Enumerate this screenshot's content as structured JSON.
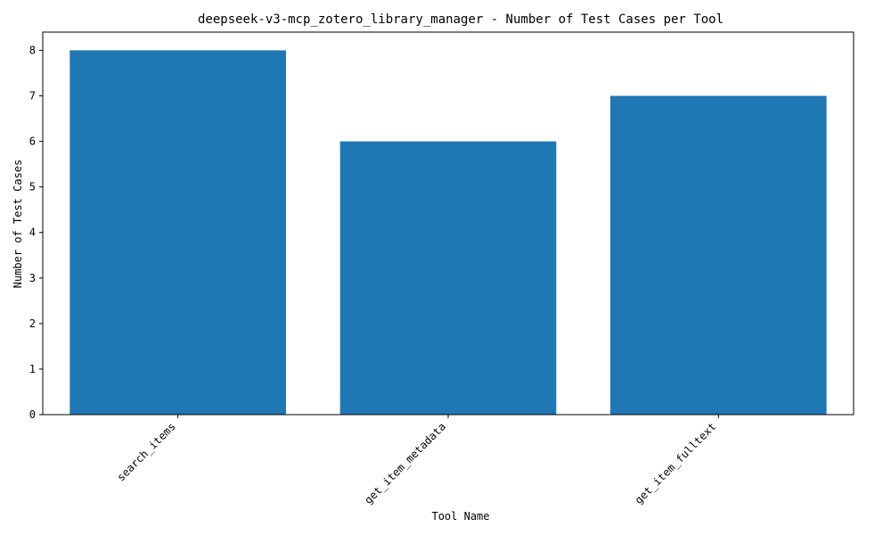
{
  "chart_data": {
    "type": "bar",
    "title": "deepseek-v3-mcp_zotero_library_manager - Number of Test Cases per Tool",
    "xlabel": "Tool Name",
    "ylabel": "Number of Test Cases",
    "categories": [
      "search_items",
      "get_item_metadata",
      "get_item_fulltext"
    ],
    "values": [
      8,
      6,
      7
    ],
    "ylim": [
      0,
      8.4
    ],
    "yticks": [
      0,
      1,
      2,
      3,
      4,
      5,
      6,
      7,
      8
    ],
    "bar_color": "#1f77b4",
    "grid": false,
    "legend": "none"
  }
}
